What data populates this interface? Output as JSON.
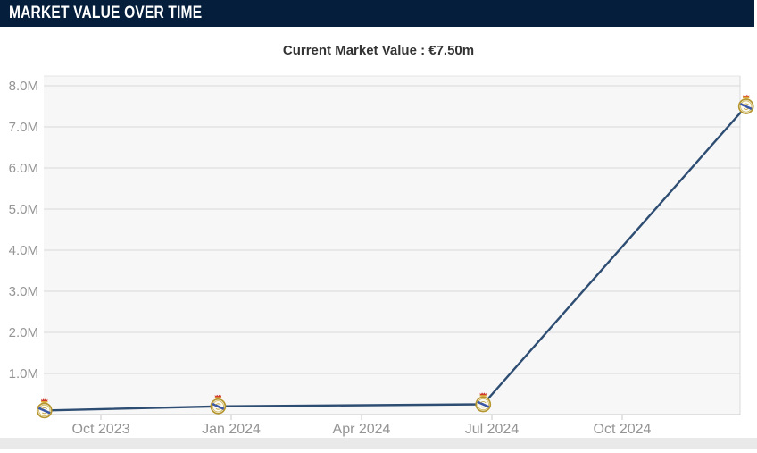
{
  "header": {
    "title": "MARKET VALUE OVER TIME"
  },
  "subtitle": {
    "text": "Current Market Value : €7.50m"
  },
  "chart_data": {
    "type": "line",
    "title": "Market Value Over Time",
    "subtitle": "Current Market Value : €7.50m",
    "currency": "EUR",
    "unit": "millions",
    "legend": false,
    "grid": true,
    "month_index_note": "month_index = months since Jan 2023 (Jan 2023 = 0)",
    "x_ticks": [
      {
        "label": "Oct 2023",
        "month_index": 9
      },
      {
        "label": "Jan 2024",
        "month_index": 12
      },
      {
        "label": "Apr 2024",
        "month_index": 15
      },
      {
        "label": "Jul 2024",
        "month_index": 18
      },
      {
        "label": "Oct 2024",
        "month_index": 21
      }
    ],
    "xlim_month_index": [
      7.7,
      23.7
    ],
    "y_ticks": [
      {
        "label": "1.0M",
        "value": 1
      },
      {
        "label": "2.0M",
        "value": 2
      },
      {
        "label": "3.0M",
        "value": 3
      },
      {
        "label": "4.0M",
        "value": 4
      },
      {
        "label": "5.0M",
        "value": 5
      },
      {
        "label": "6.0M",
        "value": 6
      },
      {
        "label": "7.0M",
        "value": 7
      },
      {
        "label": "8.0M",
        "value": 8
      }
    ],
    "ylim": [
      0,
      8.24
    ],
    "series": [
      {
        "name": "Market value",
        "marker": "real-madrid-crest-icon",
        "points": [
          {
            "date": "Sep 2023",
            "month_index": 7.7,
            "value": 0.1
          },
          {
            "date": "Dec 2023",
            "month_index": 11.7,
            "value": 0.2
          },
          {
            "date": "Jun 2024",
            "month_index": 17.8,
            "value": 0.25
          },
          {
            "date": "Dec 2024",
            "month_index": 23.85,
            "value": 7.5
          }
        ]
      }
    ],
    "colors": {
      "line": "#2e4d72",
      "grid": "#d9d9d9",
      "axis_line": "#c9c9c9",
      "plot_bg": "#f7f7f8",
      "axis_label": "#949494",
      "header_bg": "#041e3c",
      "header_text": "#ffffff",
      "subtitle_text": "#333333",
      "crest_gold": "#b5962f",
      "crest_red": "#cf3a30",
      "crest_blue": "#3b58a8"
    }
  }
}
